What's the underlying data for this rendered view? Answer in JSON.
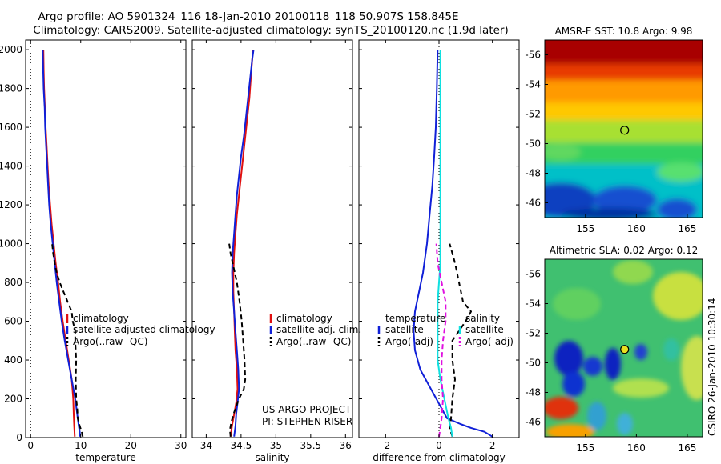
{
  "header": {
    "line1": "Argo profile: AO 5901324_116 18-Jan-2010 20100118_118 50.907S 158.845E",
    "line2": "Climatology: CARS2009. Satellite-adjusted climatology: synTS_20100120.nc (1.9d later)"
  },
  "credit": "CSIRO 26-Jan-2010 10:30:14",
  "project": {
    "line1": "US ARGO PROJECT",
    "line2": "PI: STEPHEN RISER"
  },
  "colors": {
    "red": "#e01010",
    "blue": "#1020d8",
    "black": "#000000",
    "cyan": "#10e0e0",
    "magenta": "#e010e0"
  },
  "chart_data": [
    {
      "type": "line",
      "xlabel": "temperature",
      "xlim": [
        -1,
        31
      ],
      "xticks": [
        0,
        10,
        20,
        30
      ],
      "ylim": [
        2050,
        0
      ],
      "yticks": [
        0,
        200,
        400,
        600,
        800,
        1000,
        1200,
        1400,
        1600,
        1800,
        2000
      ],
      "legend": [
        "climatology",
        "satellite-adjusted climatology",
        "Argo(..raw -QC)"
      ],
      "series": [
        {
          "name": "climatology",
          "color": "red",
          "dash": false,
          "points": [
            [
              8.8,
              5
            ],
            [
              8.7,
              60
            ],
            [
              8.6,
              120
            ],
            [
              8.5,
              200
            ],
            [
              8.2,
              300
            ],
            [
              7.6,
              400
            ],
            [
              7.0,
              500
            ],
            [
              6.4,
              600
            ],
            [
              5.9,
              700
            ],
            [
              5.5,
              800
            ],
            [
              5.0,
              900
            ],
            [
              4.6,
              1000
            ],
            [
              4.2,
              1100
            ],
            [
              3.9,
              1200
            ],
            [
              3.6,
              1300
            ],
            [
              3.4,
              1400
            ],
            [
              3.2,
              1500
            ],
            [
              3.0,
              1600
            ],
            [
              2.85,
              1700
            ],
            [
              2.7,
              1800
            ],
            [
              2.6,
              1900
            ],
            [
              2.55,
              2000
            ]
          ]
        },
        {
          "name": "satellite-adjusted climatology",
          "color": "blue",
          "dash": false,
          "points": [
            [
              9.9,
              5
            ],
            [
              9.8,
              30
            ],
            [
              9.6,
              60
            ],
            [
              9.3,
              120
            ],
            [
              8.9,
              200
            ],
            [
              8.2,
              300
            ],
            [
              7.5,
              400
            ],
            [
              6.8,
              500
            ],
            [
              6.2,
              600
            ],
            [
              5.7,
              700
            ],
            [
              5.2,
              800
            ],
            [
              4.8,
              900
            ],
            [
              4.4,
              1000
            ],
            [
              4.0,
              1100
            ],
            [
              3.7,
              1200
            ],
            [
              3.5,
              1300
            ],
            [
              3.3,
              1400
            ],
            [
              3.1,
              1500
            ],
            [
              2.9,
              1600
            ],
            [
              2.8,
              1700
            ],
            [
              2.6,
              1800
            ],
            [
              2.5,
              1900
            ],
            [
              2.4,
              2000
            ]
          ]
        },
        {
          "name": "Argo(..raw -QC)",
          "color": "black",
          "dash": true,
          "points": [
            [
              10.4,
              5
            ],
            [
              10.2,
              30
            ],
            [
              9.8,
              60
            ],
            [
              9.4,
              100
            ],
            [
              9.3,
              150
            ],
            [
              9.1,
              200
            ],
            [
              9.0,
              300
            ],
            [
              9.1,
              400
            ],
            [
              8.9,
              500
            ],
            [
              8.9,
              550
            ],
            [
              8.4,
              600
            ],
            [
              8.2,
              650
            ],
            [
              7.4,
              700
            ],
            [
              6.6,
              750
            ],
            [
              5.8,
              800
            ],
            [
              5.2,
              850
            ],
            [
              4.8,
              900
            ],
            [
              4.5,
              950
            ],
            [
              4.3,
              1000
            ]
          ]
        }
      ]
    },
    {
      "type": "line",
      "xlabel": "salinity",
      "xlim": [
        33.8,
        36.1
      ],
      "xticks": [
        34,
        34.5,
        35,
        35.5,
        36
      ],
      "ylim": [
        2050,
        0
      ],
      "yticks": [
        0,
        200,
        400,
        600,
        800,
        1000,
        1200,
        1400,
        1600,
        1800,
        2000
      ],
      "legend": [
        "climatology",
        "satellite adj. clim.",
        "Argo(..raw -QC)"
      ],
      "series": [
        {
          "name": "climatology",
          "color": "red",
          "dash": false,
          "points": [
            [
              34.35,
              5
            ],
            [
              34.37,
              60
            ],
            [
              34.4,
              120
            ],
            [
              34.43,
              180
            ],
            [
              34.45,
              250
            ],
            [
              34.44,
              350
            ],
            [
              34.42,
              450
            ],
            [
              34.41,
              550
            ],
            [
              34.4,
              650
            ],
            [
              34.39,
              750
            ],
            [
              34.39,
              850
            ],
            [
              34.4,
              950
            ],
            [
              34.42,
              1050
            ],
            [
              34.44,
              1150
            ],
            [
              34.47,
              1250
            ],
            [
              34.5,
              1350
            ],
            [
              34.53,
              1450
            ],
            [
              34.56,
              1550
            ],
            [
              34.59,
              1650
            ],
            [
              34.62,
              1750
            ],
            [
              34.64,
              1850
            ],
            [
              34.66,
              1950
            ],
            [
              34.67,
              2000
            ]
          ]
        },
        {
          "name": "satellite adj. clim.",
          "color": "blue",
          "dash": false,
          "points": [
            [
              34.4,
              5
            ],
            [
              34.42,
              60
            ],
            [
              34.43,
              120
            ],
            [
              34.45,
              180
            ],
            [
              34.47,
              250
            ],
            [
              34.46,
              350
            ],
            [
              34.44,
              450
            ],
            [
              34.42,
              550
            ],
            [
              34.4,
              650
            ],
            [
              34.38,
              750
            ],
            [
              34.37,
              850
            ],
            [
              34.38,
              950
            ],
            [
              34.4,
              1050
            ],
            [
              34.42,
              1150
            ],
            [
              34.44,
              1250
            ],
            [
              34.47,
              1350
            ],
            [
              34.5,
              1450
            ],
            [
              34.54,
              1550
            ],
            [
              34.57,
              1650
            ],
            [
              34.6,
              1750
            ],
            [
              34.63,
              1850
            ],
            [
              34.66,
              1950
            ],
            [
              34.68,
              2000
            ]
          ]
        },
        {
          "name": "Argo(..raw -QC)",
          "color": "black",
          "dash": true,
          "points": [
            [
              34.35,
              5
            ],
            [
              34.34,
              40
            ],
            [
              34.36,
              80
            ],
            [
              34.4,
              130
            ],
            [
              34.47,
              200
            ],
            [
              34.54,
              250
            ],
            [
              34.56,
              300
            ],
            [
              34.55,
              400
            ],
            [
              34.53,
              500
            ],
            [
              34.51,
              600
            ],
            [
              34.48,
              700
            ],
            [
              34.44,
              800
            ],
            [
              34.38,
              900
            ],
            [
              34.35,
              950
            ],
            [
              34.33,
              1000
            ]
          ]
        }
      ]
    },
    {
      "type": "line",
      "xlabel": "difference from climatology",
      "xlim": [
        -3,
        3
      ],
      "xticks": [
        -2,
        0,
        2
      ],
      "ylim": [
        2050,
        0
      ],
      "yticks": [
        0,
        200,
        400,
        600,
        800,
        1000,
        1200,
        1400,
        1600,
        1800,
        2000
      ],
      "legend_left_title": "temperature",
      "legend_left": [
        "satellite",
        "Argo(-adj)"
      ],
      "legend_right_title": "salinity",
      "legend_right": [
        "satellite",
        "Argo(-adj)"
      ],
      "series": [
        {
          "name": "temperature satellite",
          "color": "blue",
          "dash": false,
          "points": [
            [
              2.0,
              5
            ],
            [
              1.7,
              30
            ],
            [
              1.2,
              50
            ],
            [
              0.8,
              70
            ],
            [
              0.3,
              100
            ],
            [
              0.1,
              150
            ],
            [
              -0.3,
              250
            ],
            [
              -0.7,
              350
            ],
            [
              -0.9,
              450
            ],
            [
              -0.95,
              550
            ],
            [
              -0.9,
              650
            ],
            [
              -0.75,
              750
            ],
            [
              -0.6,
              850
            ],
            [
              -0.45,
              1000
            ],
            [
              -0.35,
              1150
            ],
            [
              -0.25,
              1300
            ],
            [
              -0.18,
              1450
            ],
            [
              -0.12,
              1600
            ],
            [
              -0.08,
              1800
            ],
            [
              -0.05,
              2000
            ]
          ]
        },
        {
          "name": "temperature Argo(-adj)",
          "color": "black",
          "dash": true,
          "points": [
            [
              0.5,
              5
            ],
            [
              0.4,
              50
            ],
            [
              0.45,
              100
            ],
            [
              0.5,
              200
            ],
            [
              0.6,
              300
            ],
            [
              0.5,
              400
            ],
            [
              0.5,
              500
            ],
            [
              1.0,
              600
            ],
            [
              1.2,
              650
            ],
            [
              0.9,
              700
            ],
            [
              0.75,
              800
            ],
            [
              0.6,
              900
            ],
            [
              0.4,
              1000
            ]
          ]
        },
        {
          "name": "salinity satellite",
          "color": "cyan",
          "dash": false,
          "points": [
            [
              0.5,
              5
            ],
            [
              0.45,
              50
            ],
            [
              0.35,
              100
            ],
            [
              0.2,
              200
            ],
            [
              0.05,
              300
            ],
            [
              -0.05,
              400
            ],
            [
              -0.05,
              500
            ],
            [
              -0.05,
              600
            ],
            [
              -0.05,
              700
            ],
            [
              0.0,
              800
            ],
            [
              0.05,
              900
            ],
            [
              0.05,
              1000
            ],
            [
              0.05,
              1200
            ],
            [
              0.05,
              1400
            ],
            [
              0.05,
              1600
            ],
            [
              0.05,
              1800
            ],
            [
              0.05,
              2000
            ]
          ]
        },
        {
          "name": "salinity Argo(-adj)",
          "color": "magenta",
          "dash": true,
          "points": [
            [
              0.0,
              5
            ],
            [
              0.05,
              50
            ],
            [
              0.1,
              100
            ],
            [
              0.15,
              200
            ],
            [
              0.1,
              300
            ],
            [
              0.1,
              400
            ],
            [
              0.15,
              500
            ],
            [
              0.25,
              600
            ],
            [
              0.25,
              700
            ],
            [
              0.1,
              800
            ],
            [
              -0.05,
              900
            ],
            [
              -0.1,
              1000
            ]
          ]
        }
      ]
    },
    {
      "type": "heatmap",
      "title": "AMSR-E SST: 10.8 Argo: 9.98",
      "xlim": [
        151,
        166.5
      ],
      "xticks": [
        155,
        160,
        165
      ],
      "ylim": [
        -57,
        -45
      ],
      "yticks": [
        -46,
        -48,
        -50,
        -52,
        -54,
        -56
      ],
      "marker": [
        158.845,
        -50.907
      ]
    },
    {
      "type": "heatmap",
      "title": "Altimetric SLA: 0.02 Argo: 0.12",
      "xlim": [
        151,
        166.5
      ],
      "xticks": [
        155,
        160,
        165
      ],
      "ylim": [
        -57,
        -45
      ],
      "yticks": [
        -46,
        -48,
        -50,
        -52,
        -54,
        -56
      ],
      "marker": [
        158.845,
        -50.907
      ]
    }
  ]
}
